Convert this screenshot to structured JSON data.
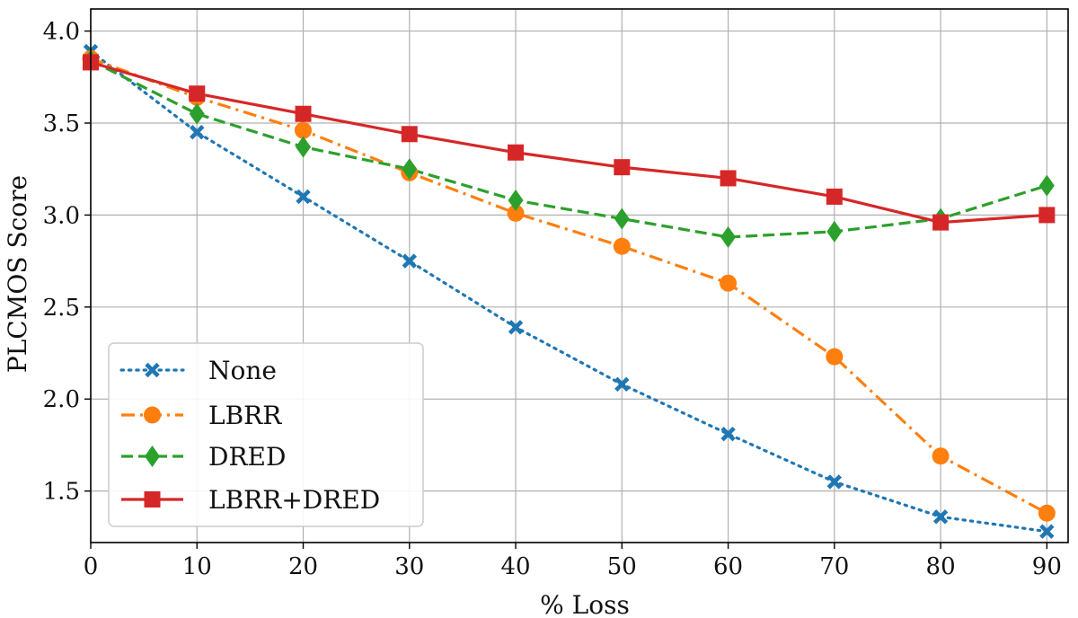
{
  "chart_data": {
    "type": "line",
    "title": "",
    "xlabel": "% Loss",
    "ylabel": "PLCMOS Score",
    "x": [
      0,
      10,
      20,
      30,
      40,
      50,
      60,
      70,
      80,
      90
    ],
    "xlim": [
      0,
      92
    ],
    "ylim": [
      1.22,
      4.12
    ],
    "xticks": [
      0,
      10,
      20,
      30,
      40,
      50,
      60,
      70,
      80,
      90
    ],
    "yticks": [
      1.5,
      2.0,
      2.5,
      3.0,
      3.5,
      4.0
    ],
    "ytick_labels": [
      "1.5",
      "2.0",
      "2.5",
      "3.0",
      "3.5",
      "4.0"
    ],
    "grid": true,
    "legend_position": "lower-left",
    "series": [
      {
        "name": "None",
        "color": "#1f77b4",
        "line_style": "dotted",
        "marker": "x-filled",
        "values": [
          3.89,
          3.45,
          3.1,
          2.75,
          2.39,
          2.08,
          1.81,
          1.55,
          1.36,
          1.28
        ]
      },
      {
        "name": "LBRR",
        "color": "#ff7f0e",
        "line_style": "dashdot",
        "marker": "circle",
        "values": [
          3.85,
          3.64,
          3.46,
          3.23,
          3.01,
          2.83,
          2.63,
          2.23,
          1.69,
          1.38
        ]
      },
      {
        "name": "DRED",
        "color": "#2ca02c",
        "line_style": "dashed",
        "marker": "diamond",
        "values": [
          3.84,
          3.55,
          3.37,
          3.25,
          3.08,
          2.98,
          2.88,
          2.91,
          2.98,
          3.16
        ]
      },
      {
        "name": "LBRR+DRED",
        "color": "#d62728",
        "line_style": "solid",
        "marker": "square",
        "values": [
          3.83,
          3.66,
          3.55,
          3.44,
          3.34,
          3.26,
          3.2,
          3.1,
          2.96,
          3.0
        ]
      }
    ]
  }
}
